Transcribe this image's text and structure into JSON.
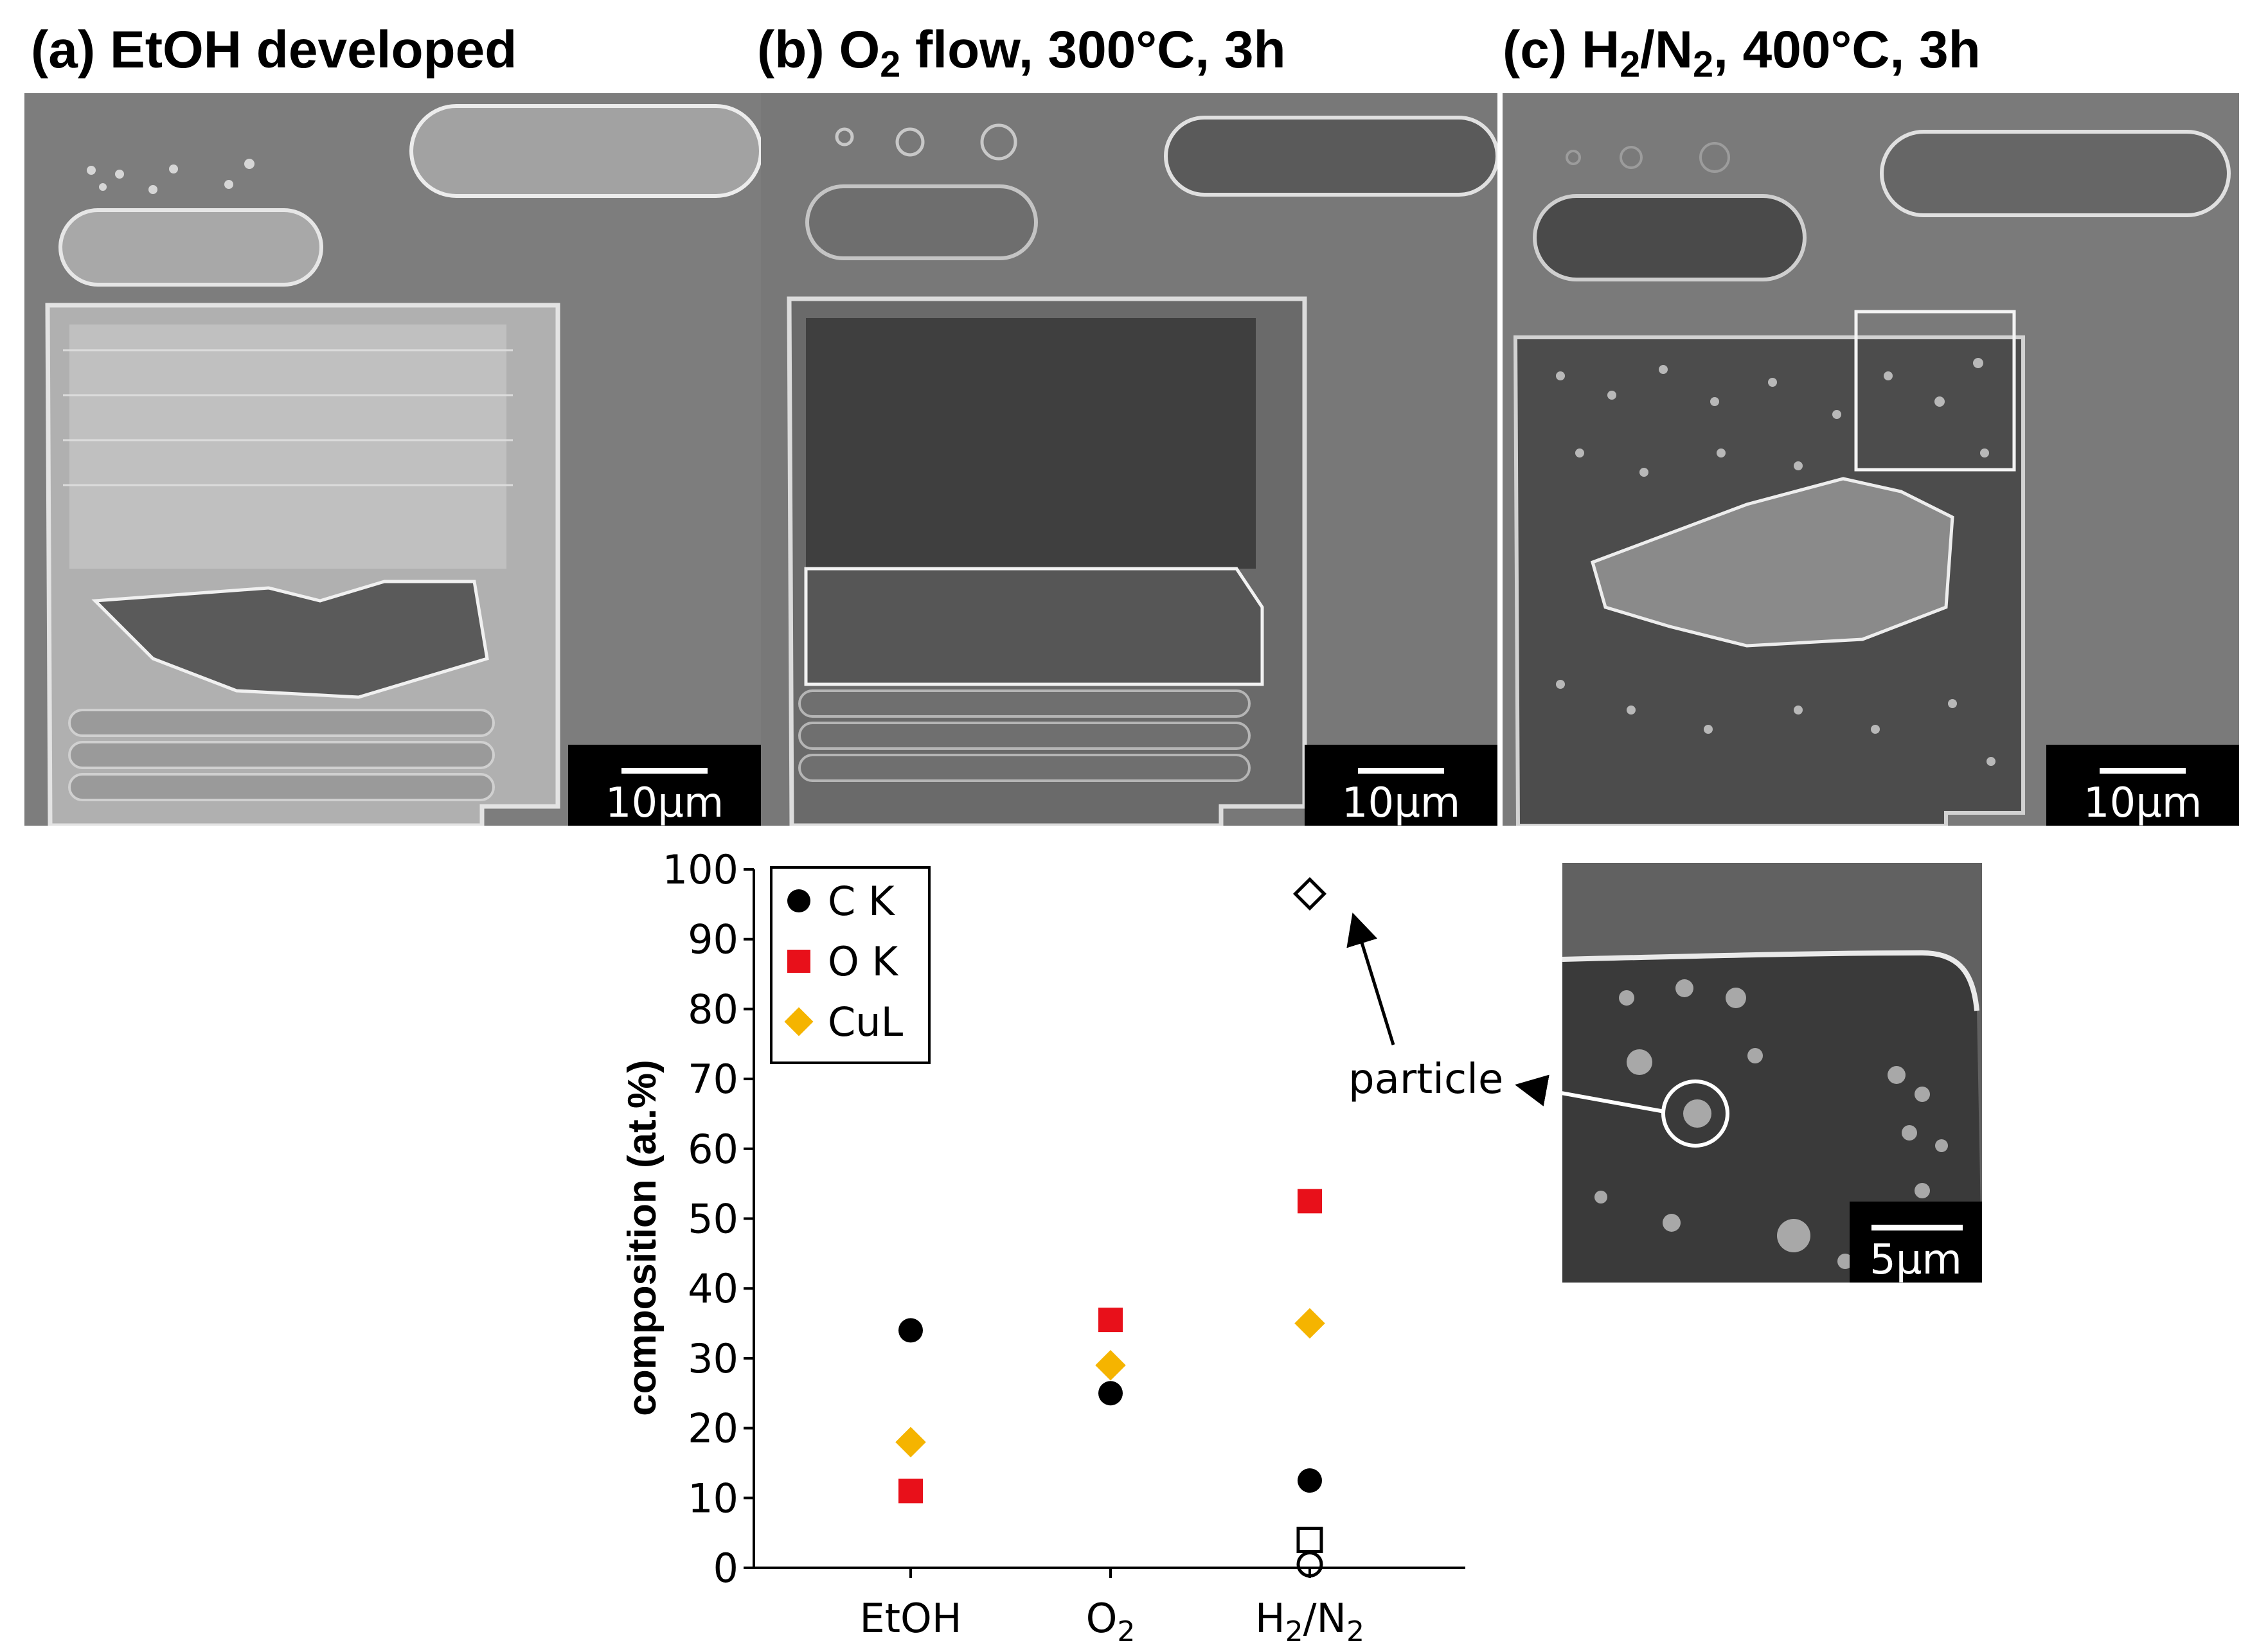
{
  "panels": [
    {
      "prefix": "(a) EtOH developed",
      "sub1": "",
      "mid": "",
      "sub2": "",
      "suffix": "",
      "scale": "10μm"
    },
    {
      "prefix": "(b) O",
      "sub1": "2",
      "mid": " flow, 300°C, 3h",
      "sub2": "",
      "suffix": "",
      "scale": "10μm"
    },
    {
      "prefix": "(c) H",
      "sub1": "2",
      "mid": "/N",
      "sub2": "2",
      "suffix": ", 400°C, 3h",
      "scale": "10μm"
    }
  ],
  "inset": {
    "scale": "5μm",
    "annotation": "particle"
  },
  "chart_data": {
    "type": "scatter",
    "categories": [
      "EtOH",
      "O2",
      "H2/N2"
    ],
    "ylabel": "composition (at.%)",
    "ylim": [
      0,
      100
    ],
    "yticks": [
      0,
      10,
      20,
      30,
      40,
      50,
      60,
      70,
      80,
      90,
      100
    ],
    "series": [
      {
        "name": "C K",
        "marker": "circle",
        "color": "#000000",
        "filled": true,
        "values": [
          34,
          25,
          12.5
        ]
      },
      {
        "name": "O K",
        "marker": "square",
        "color": "#e8101a",
        "filled": true,
        "values": [
          11,
          35.5,
          52.5
        ]
      },
      {
        "name": "CuL",
        "marker": "diamond",
        "color": "#f5b400",
        "filled": true,
        "values": [
          18,
          29,
          35
        ]
      }
    ],
    "particle_series": [
      {
        "marker": "diamond",
        "color": "#000000",
        "filled": false,
        "category": "H2/N2",
        "value": 96.5
      },
      {
        "marker": "square",
        "color": "#000000",
        "filled": false,
        "category": "H2/N2",
        "value": 4
      },
      {
        "marker": "circle",
        "color": "#000000",
        "filled": false,
        "category": "H2/N2",
        "value": 0.5
      }
    ],
    "category_labels": [
      {
        "base": "EtOH",
        "sub": "",
        "tail": "",
        "sub2": ""
      },
      {
        "base": "O",
        "sub": "2",
        "tail": "",
        "sub2": ""
      },
      {
        "base": "H",
        "sub": "2",
        "tail": "/N",
        "sub2": "2"
      }
    ],
    "legend_position": "top-left"
  }
}
